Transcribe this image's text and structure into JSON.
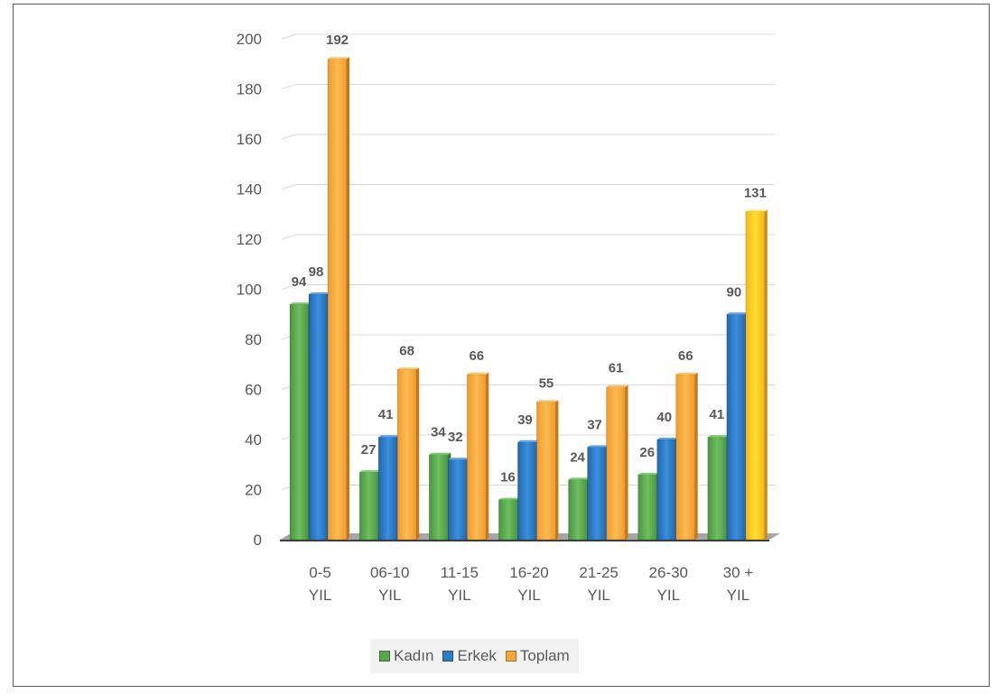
{
  "chart_data": {
    "type": "bar",
    "categories": [
      [
        "0-5",
        "YIL"
      ],
      [
        "06-10",
        "YIL"
      ],
      [
        "11-15",
        "YIL"
      ],
      [
        "16-20",
        "YIL"
      ],
      [
        "21-25",
        "YIL"
      ],
      [
        "26-30",
        "YIL"
      ],
      [
        "30 +",
        "YIL"
      ]
    ],
    "series": [
      {
        "name": "Kadın",
        "values": [
          94,
          27,
          34,
          16,
          24,
          26,
          41
        ],
        "color": "#5aa64f"
      },
      {
        "name": "Erkek",
        "values": [
          98,
          41,
          32,
          39,
          37,
          40,
          90
        ],
        "color": "#2f7cc7"
      },
      {
        "name": "Toplam",
        "values": [
          192,
          68,
          66,
          55,
          61,
          66,
          131
        ],
        "color": "#f5a63a"
      }
    ],
    "ylim": [
      0,
      200
    ],
    "yticks": [
      0,
      20,
      40,
      60,
      80,
      100,
      120,
      140,
      160,
      180,
      200
    ],
    "grid": true,
    "legend": "bottom",
    "style": "3d-clustered-column"
  }
}
